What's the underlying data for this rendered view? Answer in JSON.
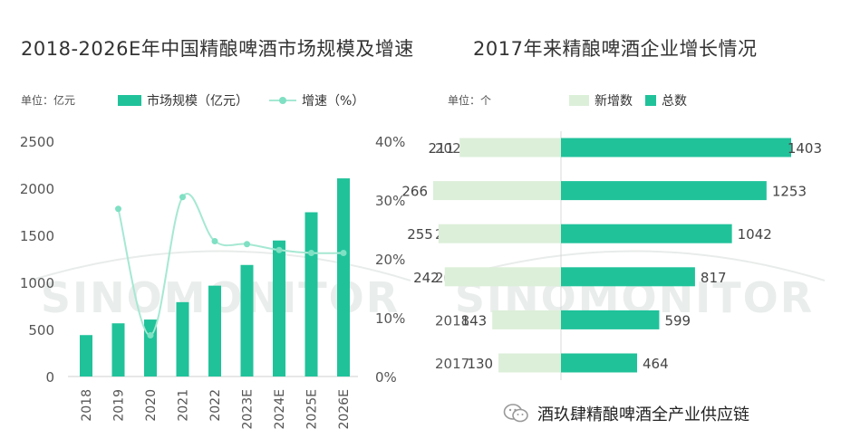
{
  "chart_data": [
    {
      "type": "bar+line",
      "title": "2018-2026E年中国精酿啤酒市场规模及增速",
      "unit_label": "单位：亿元",
      "legend": [
        "市场规模（亿元）",
        "增速（%）"
      ],
      "categories": [
        "2018",
        "2019",
        "2020",
        "2021",
        "2022",
        "2023E",
        "2024E",
        "2025E",
        "2026E"
      ],
      "series": [
        {
          "name": "市场规模（亿元）",
          "type": "bar",
          "axis": "left",
          "values": [
            440,
            565,
            605,
            790,
            965,
            1185,
            1445,
            1745,
            2105
          ]
        },
        {
          "name": "增速（%）",
          "type": "line",
          "axis": "right",
          "values": [
            null,
            28.5,
            7,
            30.5,
            23,
            22.5,
            21.5,
            21,
            21
          ]
        }
      ],
      "y_left": {
        "ticks": [
          "0",
          "500",
          "1000",
          "1500",
          "2000",
          "2500"
        ],
        "range": [
          0,
          2500
        ]
      },
      "y_right": {
        "ticks": [
          "0%",
          "10%",
          "20%",
          "30%",
          "40%"
        ],
        "range": [
          0,
          40
        ]
      },
      "colors": {
        "bar": "#20c29a",
        "line": "#a6e8d3",
        "point": "#7fe0c3"
      }
    },
    {
      "type": "bar",
      "orientation": "horizontal-diverging",
      "title": "2017年来精酿啤酒企业增长情况",
      "unit_label": "单位：个",
      "legend": [
        "新增数",
        "总数"
      ],
      "categories": [
        "2022",
        "2021",
        "2020",
        "2019",
        "2018",
        "2017"
      ],
      "series": [
        {
          "name": "新增数",
          "values": [
            211,
            266,
            255,
            242,
            143,
            130
          ]
        },
        {
          "name": "总数",
          "values": [
            1403,
            1253,
            1042,
            817,
            599,
            464
          ]
        }
      ],
      "colors": {
        "new": "#dcefd9",
        "total": "#20c29a"
      }
    }
  ],
  "watermark": "SINOMONITOR",
  "footer": {
    "account_name": "酒玖肆精酿啤酒全产业供应链"
  }
}
